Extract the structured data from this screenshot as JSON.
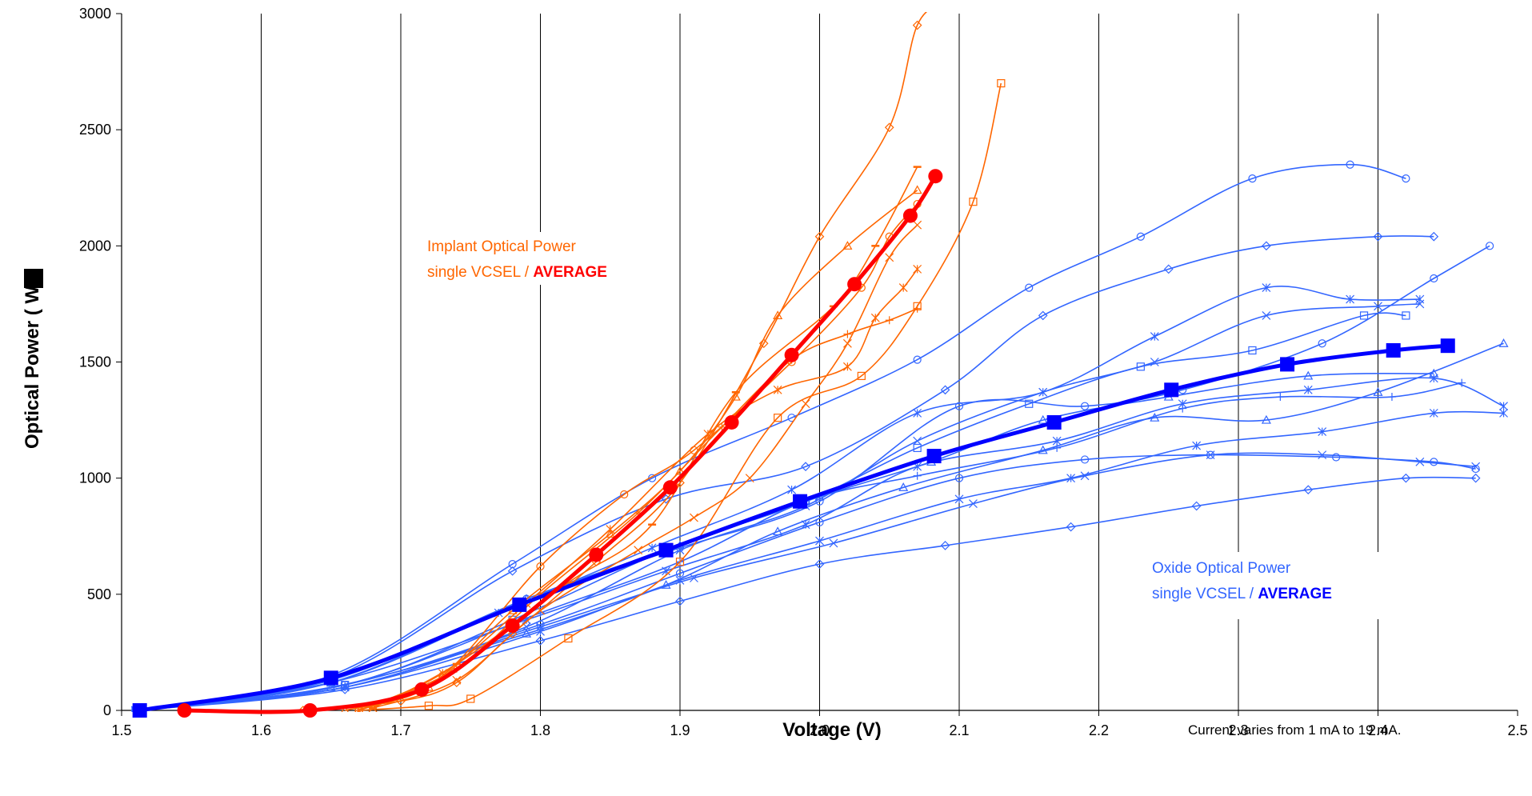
{
  "chart_data": {
    "type": "line",
    "title": "",
    "xlabel": "Voltage (V)",
    "ylabel": "Optical Power (  W)",
    "xlim": [
      1.5,
      2.5
    ],
    "ylim": [
      0,
      3000
    ],
    "x_ticks": [
      "1.5",
      "1.6",
      "1.7",
      "1.8",
      "1.9",
      "2.0",
      "2.1",
      "2.2",
      "2.3",
      "2.4",
      "2.5"
    ],
    "y_ticks": [
      "0",
      "500",
      "1000",
      "1500",
      "2000",
      "2500",
      "3000"
    ],
    "grid": "vertical",
    "colors": {
      "implant": "#ff6600",
      "implant_avg": "#ff0000",
      "oxide": "#3366ff",
      "oxide_avg": "#0000ff"
    },
    "annotations": {
      "implant_line1": "Implant Optical Power",
      "implant_line2": "single VCSEL / ",
      "implant_bold": "AVERAGE",
      "oxide_line1": "Oxide Optical Power",
      "oxide_line2": "single VCSEL / ",
      "oxide_bold": "AVERAGE",
      "footnote": "Current varies from 1 mA to 19 mA."
    },
    "implant_series": [
      {
        "marker": "diamond",
        "points": [
          [
            1.63,
            0
          ],
          [
            1.7,
            40
          ],
          [
            1.74,
            120
          ],
          [
            1.78,
            330
          ],
          [
            1.84,
            640
          ],
          [
            1.9,
            980
          ],
          [
            1.96,
            1580
          ],
          [
            2.0,
            2040
          ],
          [
            2.05,
            2510
          ],
          [
            2.07,
            2950
          ],
          [
            2.09,
            3050
          ]
        ]
      },
      {
        "marker": "square",
        "points": [
          [
            1.67,
            0
          ],
          [
            1.72,
            20
          ],
          [
            1.75,
            50
          ],
          [
            1.82,
            310
          ],
          [
            1.9,
            640
          ],
          [
            1.97,
            1260
          ],
          [
            2.03,
            1440
          ],
          [
            2.07,
            1740
          ],
          [
            2.11,
            2190
          ],
          [
            2.13,
            2700
          ]
        ]
      },
      {
        "marker": "triangle",
        "points": [
          [
            1.66,
            0
          ],
          [
            1.72,
            100
          ],
          [
            1.78,
            430
          ],
          [
            1.85,
            760
          ],
          [
            1.9,
            1030
          ],
          [
            1.94,
            1350
          ],
          [
            1.97,
            1700
          ],
          [
            2.02,
            2000
          ],
          [
            2.07,
            2240
          ]
        ]
      },
      {
        "marker": "circle",
        "points": [
          [
            1.67,
            0
          ],
          [
            1.73,
            150
          ],
          [
            1.8,
            620
          ],
          [
            1.86,
            930
          ],
          [
            1.91,
            1120
          ],
          [
            1.98,
            1500
          ],
          [
            2.03,
            1820
          ],
          [
            2.05,
            2040
          ],
          [
            2.07,
            2180
          ]
        ]
      },
      {
        "marker": "dash",
        "points": [
          [
            1.68,
            10
          ],
          [
            1.74,
            200
          ],
          [
            1.82,
            550
          ],
          [
            1.88,
            800
          ],
          [
            1.94,
            1370
          ],
          [
            2.01,
            1740
          ],
          [
            2.04,
            2000
          ],
          [
            2.07,
            2340
          ]
        ]
      },
      {
        "marker": "star",
        "points": [
          [
            1.67,
            0
          ],
          [
            1.73,
            160
          ],
          [
            1.79,
            460
          ],
          [
            1.85,
            780
          ],
          [
            1.92,
            1190
          ],
          [
            1.97,
            1380
          ],
          [
            2.02,
            1480
          ],
          [
            2.04,
            1690
          ],
          [
            2.06,
            1820
          ],
          [
            2.07,
            1900
          ]
        ]
      },
      {
        "marker": "plus",
        "points": [
          [
            1.67,
            0
          ],
          [
            1.74,
            180
          ],
          [
            1.8,
            500
          ],
          [
            1.87,
            850
          ],
          [
            1.93,
            1220
          ],
          [
            1.98,
            1510
          ],
          [
            2.02,
            1620
          ],
          [
            2.05,
            1680
          ],
          [
            2.07,
            1730
          ]
        ]
      },
      {
        "marker": "x",
        "points": [
          [
            1.68,
            10
          ],
          [
            1.74,
            130
          ],
          [
            1.8,
            430
          ],
          [
            1.87,
            690
          ],
          [
            1.91,
            830
          ],
          [
            1.95,
            1000
          ],
          [
            1.99,
            1320
          ],
          [
            2.02,
            1580
          ],
          [
            2.05,
            1950
          ],
          [
            2.07,
            2090
          ]
        ]
      }
    ],
    "implant_average": [
      [
        1.545,
        0
      ],
      [
        1.635,
        0
      ],
      [
        1.715,
        90
      ],
      [
        1.78,
        365
      ],
      [
        1.84,
        670
      ],
      [
        1.893,
        960
      ],
      [
        1.937,
        1240
      ],
      [
        1.98,
        1530
      ],
      [
        2.025,
        1835
      ],
      [
        2.065,
        2130
      ],
      [
        2.083,
        2300
      ]
    ],
    "oxide_series": [
      {
        "marker": "circle",
        "points": [
          [
            1.51,
            0
          ],
          [
            1.65,
            150
          ],
          [
            1.78,
            630
          ],
          [
            1.88,
            1000
          ],
          [
            1.98,
            1260
          ],
          [
            2.07,
            1510
          ],
          [
            2.15,
            1820
          ],
          [
            2.23,
            2040
          ],
          [
            2.31,
            2290
          ],
          [
            2.38,
            2350
          ],
          [
            2.42,
            2290
          ]
        ]
      },
      {
        "marker": "diamond",
        "points": [
          [
            1.51,
            0
          ],
          [
            1.65,
            140
          ],
          [
            1.78,
            600
          ],
          [
            1.89,
            910
          ],
          [
            1.99,
            1050
          ],
          [
            2.09,
            1380
          ],
          [
            2.16,
            1700
          ],
          [
            2.25,
            1900
          ],
          [
            2.32,
            2000
          ],
          [
            2.4,
            2040
          ],
          [
            2.44,
            2040
          ]
        ]
      },
      {
        "marker": "circle",
        "points": [
          [
            1.51,
            0
          ],
          [
            1.65,
            130
          ],
          [
            1.79,
            480
          ],
          [
            1.9,
            700
          ],
          [
            2.0,
            900
          ],
          [
            2.1,
            1310
          ],
          [
            2.19,
            1310
          ],
          [
            2.26,
            1380
          ],
          [
            2.36,
            1580
          ],
          [
            2.44,
            1860
          ],
          [
            2.48,
            2000
          ]
        ]
      },
      {
        "marker": "star",
        "points": [
          [
            1.51,
            0
          ],
          [
            1.65,
            120
          ],
          [
            1.77,
            420
          ],
          [
            1.88,
            700
          ],
          [
            1.98,
            950
          ],
          [
            2.07,
            1280
          ],
          [
            2.16,
            1370
          ],
          [
            2.24,
            1610
          ],
          [
            2.32,
            1820
          ],
          [
            2.38,
            1770
          ],
          [
            2.43,
            1770
          ]
        ]
      },
      {
        "marker": "square",
        "points": [
          [
            1.51,
            0
          ],
          [
            1.66,
            110
          ],
          [
            1.78,
            390
          ],
          [
            1.89,
            690
          ],
          [
            1.99,
            900
          ],
          [
            2.07,
            1130
          ],
          [
            2.15,
            1320
          ],
          [
            2.23,
            1480
          ],
          [
            2.31,
            1550
          ],
          [
            2.39,
            1700
          ],
          [
            2.42,
            1700
          ]
        ]
      },
      {
        "marker": "x",
        "points": [
          [
            1.51,
            0
          ],
          [
            1.66,
            100
          ],
          [
            1.79,
            360
          ],
          [
            1.9,
            690
          ],
          [
            1.99,
            880
          ],
          [
            2.07,
            1160
          ],
          [
            2.16,
            1370
          ],
          [
            2.24,
            1500
          ],
          [
            2.32,
            1700
          ],
          [
            2.4,
            1740
          ],
          [
            2.43,
            1750
          ]
        ]
      },
      {
        "marker": "triangle",
        "points": [
          [
            1.51,
            0
          ],
          [
            1.65,
            100
          ],
          [
            1.79,
            330
          ],
          [
            1.89,
            540
          ],
          [
            1.97,
            770
          ],
          [
            2.06,
            960
          ],
          [
            2.16,
            1120
          ],
          [
            2.24,
            1260
          ],
          [
            2.32,
            1250
          ],
          [
            2.4,
            1370
          ],
          [
            2.49,
            1580
          ]
        ]
      },
      {
        "marker": "plus",
        "points": [
          [
            1.51,
            0
          ],
          [
            1.66,
            110
          ],
          [
            1.8,
            420
          ],
          [
            1.9,
            640
          ],
          [
            1.99,
            900
          ],
          [
            2.07,
            1010
          ],
          [
            2.17,
            1130
          ],
          [
            2.26,
            1300
          ],
          [
            2.33,
            1350
          ],
          [
            2.41,
            1350
          ],
          [
            2.46,
            1410
          ]
        ]
      },
      {
        "marker": "star",
        "points": [
          [
            1.51,
            0
          ],
          [
            1.65,
            120
          ],
          [
            1.79,
            390
          ],
          [
            1.89,
            600
          ],
          [
            1.99,
            800
          ],
          [
            2.07,
            1050
          ],
          [
            2.17,
            1160
          ],
          [
            2.26,
            1320
          ],
          [
            2.35,
            1380
          ],
          [
            2.44,
            1430
          ],
          [
            2.49,
            1310
          ]
        ]
      },
      {
        "marker": "circle",
        "points": [
          [
            1.51,
            0
          ],
          [
            1.66,
            110
          ],
          [
            1.8,
            370
          ],
          [
            1.9,
            590
          ],
          [
            2.0,
            810
          ],
          [
            2.1,
            1000
          ],
          [
            2.19,
            1080
          ],
          [
            2.28,
            1100
          ],
          [
            2.37,
            1090
          ],
          [
            2.44,
            1070
          ],
          [
            2.47,
            1040
          ]
        ]
      },
      {
        "marker": "x",
        "points": [
          [
            1.51,
            0
          ],
          [
            1.66,
            100
          ],
          [
            1.8,
            360
          ],
          [
            1.91,
            570
          ],
          [
            2.01,
            720
          ],
          [
            2.11,
            890
          ],
          [
            2.19,
            1010
          ],
          [
            2.28,
            1100
          ],
          [
            2.36,
            1100
          ],
          [
            2.43,
            1070
          ],
          [
            2.47,
            1050
          ]
        ]
      },
      {
        "marker": "star",
        "points": [
          [
            1.51,
            0
          ],
          [
            1.66,
            100
          ],
          [
            1.8,
            340
          ],
          [
            1.9,
            560
          ],
          [
            2.0,
            730
          ],
          [
            2.1,
            910
          ],
          [
            2.18,
            1000
          ],
          [
            2.27,
            1140
          ],
          [
            2.36,
            1200
          ],
          [
            2.44,
            1280
          ],
          [
            2.49,
            1280
          ]
        ]
      },
      {
        "marker": "diamond",
        "points": [
          [
            1.51,
            0
          ],
          [
            1.66,
            90
          ],
          [
            1.8,
            300
          ],
          [
            1.9,
            470
          ],
          [
            2.0,
            630
          ],
          [
            2.09,
            710
          ],
          [
            2.18,
            790
          ],
          [
            2.27,
            880
          ],
          [
            2.35,
            950
          ],
          [
            2.42,
            1000
          ],
          [
            2.47,
            1000
          ]
        ]
      },
      {
        "marker": "triangle",
        "points": [
          [
            1.51,
            0
          ],
          [
            1.65,
            120
          ],
          [
            1.79,
            480
          ],
          [
            1.9,
            710
          ],
          [
            2.0,
            920
          ],
          [
            2.08,
            1070
          ],
          [
            2.16,
            1250
          ],
          [
            2.25,
            1350
          ],
          [
            2.35,
            1440
          ],
          [
            2.44,
            1450
          ]
        ]
      }
    ],
    "oxide_average": [
      [
        1.513,
        0
      ],
      [
        1.65,
        140
      ],
      [
        1.785,
        455
      ],
      [
        1.89,
        690
      ],
      [
        1.986,
        900
      ],
      [
        2.082,
        1095
      ],
      [
        2.168,
        1240
      ],
      [
        2.252,
        1380
      ],
      [
        2.335,
        1490
      ],
      [
        2.411,
        1550
      ],
      [
        2.45,
        1570
      ]
    ]
  }
}
